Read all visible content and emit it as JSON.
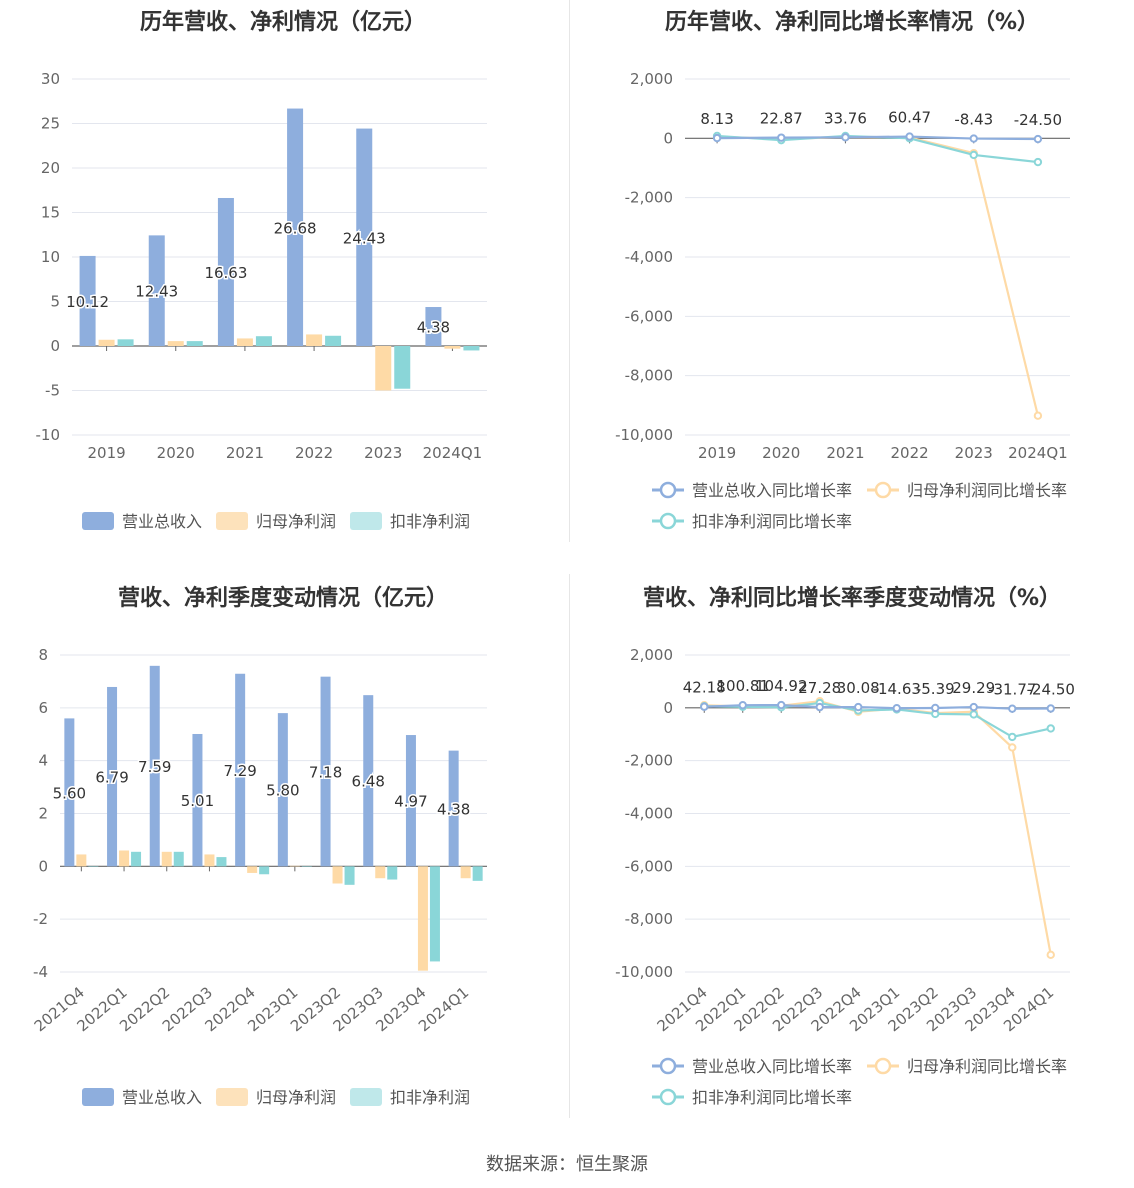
{
  "footer": {
    "source": "数据来源：恒生聚源"
  },
  "colors": {
    "revenue": "#8eaedd",
    "net_profit": "#fedaa6",
    "deducted": "#8ad6d8",
    "revenue_legend": "#8eaedd",
    "net_legend": "#fde2bb",
    "deducted_legend": "#bfe8ea"
  },
  "panels": [
    {
      "id": "annual-amount",
      "title": "历年营收、净利情况（亿元）",
      "chart_data": {
        "type": "bar",
        "categories": [
          "2019",
          "2020",
          "2021",
          "2022",
          "2023",
          "2024Q1"
        ],
        "ylim": [
          -10,
          30
        ],
        "yticks": [
          30,
          25,
          20,
          15,
          10,
          5,
          0,
          -5,
          -10
        ],
        "grid": true,
        "legend_position": "bottom",
        "series": [
          {
            "name": "营业总收入",
            "values": [
              10.12,
              12.43,
              16.63,
              26.68,
              24.43,
              4.38
            ],
            "labels": [
              "10.12",
              "12.43",
              "16.63",
              "26.68",
              "24.43",
              "4.38"
            ]
          },
          {
            "name": "归母净利润",
            "values": [
              0.7,
              0.55,
              0.85,
              1.3,
              -5.0,
              -0.3
            ]
          },
          {
            "name": "扣非净利润",
            "values": [
              0.75,
              0.55,
              1.1,
              1.15,
              -4.8,
              -0.5
            ]
          }
        ]
      }
    },
    {
      "id": "annual-growth",
      "title": "历年营收、净利同比增长率情况（%）",
      "chart_data": {
        "type": "line",
        "categories": [
          "2019",
          "2020",
          "2021",
          "2022",
          "2023",
          "2024Q1"
        ],
        "ylim": [
          -10000,
          2000
        ],
        "yticks": [
          2000,
          0,
          -2000,
          -4000,
          -6000,
          -8000,
          -10000
        ],
        "ytick_labels": [
          "2,000",
          "0",
          "-2,000",
          "-4,000",
          "-6,000",
          "-8,000",
          "-10,000"
        ],
        "grid": true,
        "legend_position": "bottom",
        "series": [
          {
            "name": "营业总收入同比增长率",
            "values": [
              8.13,
              22.87,
              33.76,
              60.47,
              -8.43,
              -24.5
            ],
            "labels": [
              "8.13",
              "22.87",
              "33.76",
              "60.47",
              "-8.43",
              "-24.50"
            ]
          },
          {
            "name": "归母净利润同比增长率",
            "values": [
              50,
              -20,
              40,
              30,
              -500,
              -9350
            ]
          },
          {
            "name": "扣非净利润同比增长率",
            "values": [
              80,
              -60,
              80,
              0,
              -560,
              -800
            ]
          }
        ]
      }
    },
    {
      "id": "quarterly-amount",
      "title": "营收、净利季度变动情况（亿元）",
      "chart_data": {
        "type": "bar",
        "categories": [
          "2021Q4",
          "2022Q1",
          "2022Q2",
          "2022Q3",
          "2022Q4",
          "2023Q1",
          "2023Q2",
          "2023Q3",
          "2023Q4",
          "2024Q1"
        ],
        "ylim": [
          -4,
          8
        ],
        "yticks": [
          8,
          6,
          4,
          2,
          0,
          -2,
          -4
        ],
        "grid": true,
        "legend_position": "bottom",
        "series": [
          {
            "name": "营业总收入",
            "values": [
              5.6,
              6.79,
              7.59,
              5.01,
              7.29,
              5.8,
              7.18,
              6.48,
              4.97,
              4.38
            ],
            "labels": [
              "5.60",
              "6.79",
              "7.59",
              "5.01",
              "7.29",
              "5.80",
              "7.18",
              "6.48",
              "4.97",
              "4.38"
            ]
          },
          {
            "name": "归母净利润",
            "values": [
              0.45,
              0.6,
              0.55,
              0.45,
              -0.25,
              0.02,
              -0.65,
              -0.45,
              -3.95,
              -0.45
            ]
          },
          {
            "name": "扣非净利润",
            "values": [
              0.0,
              0.55,
              0.55,
              0.35,
              -0.3,
              0.0,
              -0.7,
              -0.5,
              -3.6,
              -0.55
            ]
          }
        ]
      }
    },
    {
      "id": "quarterly-growth",
      "title": "营收、净利同比增长率季度变动情况（%）",
      "chart_data": {
        "type": "line",
        "categories": [
          "2021Q4",
          "2022Q1",
          "2022Q2",
          "2022Q3",
          "2022Q4",
          "2023Q1",
          "2023Q2",
          "2023Q3",
          "2023Q4",
          "2024Q1"
        ],
        "ylim": [
          -10000,
          2000
        ],
        "yticks": [
          2000,
          0,
          -2000,
          -4000,
          -6000,
          -8000,
          -10000
        ],
        "ytick_labels": [
          "2,000",
          "0",
          "-2,000",
          "-4,000",
          "-6,000",
          "-8,000",
          "-10,000"
        ],
        "grid": true,
        "legend_position": "bottom",
        "series": [
          {
            "name": "营业总收入同比增长率",
            "values": [
              42.18,
              100.81,
              104.92,
              27.28,
              30.08,
              -14.63,
              -5.39,
              29.29,
              -31.77,
              -24.5
            ],
            "labels": [
              "42.18",
              "100.81",
              "104.92",
              "27.28",
              "30.08",
              "-14.63",
              "-5.39",
              "29.29",
              "-31.77",
              "-24.50"
            ]
          },
          {
            "name": "归母净利润同比增长率",
            "values": [
              100,
              50,
              80,
              250,
              -150,
              -30,
              -200,
              -150,
              -1500,
              -9350
            ]
          },
          {
            "name": "扣非净利润同比增长率",
            "values": [
              60,
              40,
              20,
              180,
              -100,
              -60,
              -230,
              -250,
              -1100,
              -780
            ]
          }
        ]
      }
    }
  ]
}
